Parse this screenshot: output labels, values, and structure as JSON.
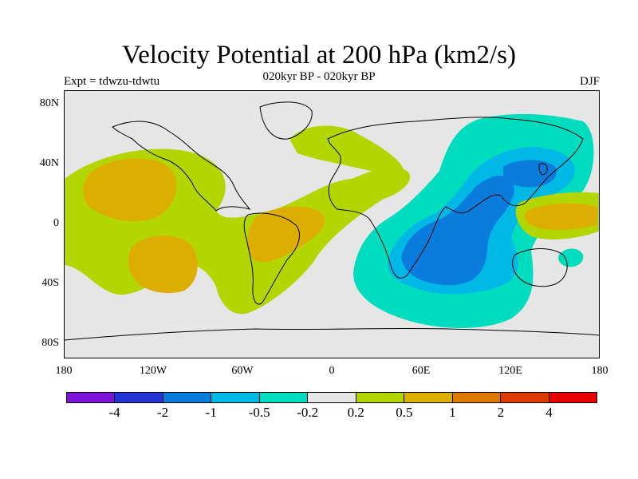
{
  "title": "Velocity Potential at 200 hPa (km2/s)",
  "subtitle": "020kyr BP - 020kyr BP",
  "left_label": "Expt = tdwzu-tdwtu",
  "right_label": "DJF",
  "lat_labels": [
    "80N",
    "40N",
    "0",
    "40S",
    "80S"
  ],
  "lon_labels": [
    "180",
    "120W",
    "60W",
    "0",
    "60E",
    "120E",
    "180"
  ],
  "colorbar": {
    "colors": [
      "#7e14d8",
      "#2434d4",
      "#0a7ddc",
      "#00b8e6",
      "#00dcbe",
      "#e6e6e6",
      "#b4d600",
      "#dcae00",
      "#dc7a00",
      "#dc3c00",
      "#e60000"
    ],
    "labels": [
      "-4",
      "-2",
      "-1",
      "-0.5",
      "-0.2",
      "0.2",
      "0.5",
      "1",
      "2",
      "4"
    ]
  }
}
